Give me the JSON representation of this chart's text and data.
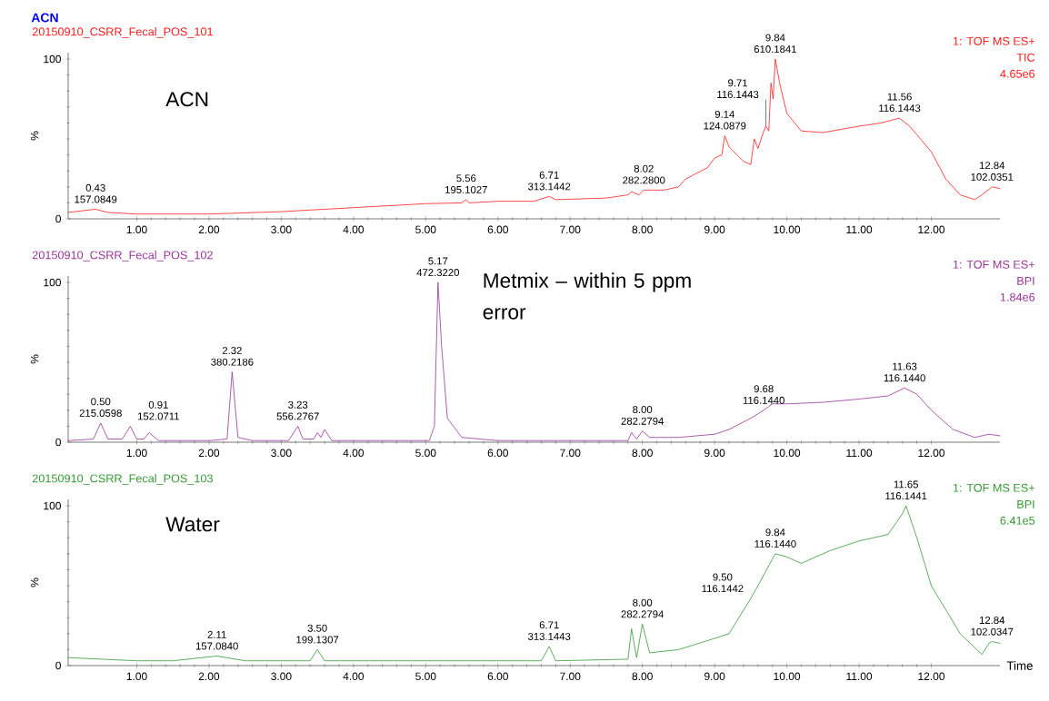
{
  "chart_data": [
    {
      "type": "line",
      "title": "20150910_CSRR_Fecal_POS_101",
      "subtitle": "1: TOF MS ES+",
      "ylabel": "%",
      "color": "#ff1a1a",
      "x": [
        0.05,
        0.43,
        0.6,
        1.0,
        2.0,
        3.0,
        4.0,
        5.0,
        5.5,
        5.56,
        5.6,
        6.0,
        6.5,
        6.71,
        6.8,
        7.5,
        7.8,
        7.85,
        7.95,
        8.02,
        8.3,
        8.5,
        8.6,
        8.9,
        9.0,
        9.1,
        9.14,
        9.2,
        9.4,
        9.5,
        9.55,
        9.6,
        9.68,
        9.71,
        9.75,
        9.78,
        9.81,
        9.84,
        9.9,
        10.0,
        10.2,
        10.5,
        11.0,
        11.3,
        11.56,
        11.7,
        12.0,
        12.2,
        12.4,
        12.6,
        12.7,
        12.84,
        12.95
      ],
      "values": [
        4,
        6,
        4,
        3,
        3,
        4.5,
        7,
        9.5,
        10,
        12,
        10,
        11,
        11,
        14,
        12,
        13,
        15,
        17,
        15,
        18,
        18,
        20,
        25,
        32,
        38,
        40,
        52,
        45,
        36,
        34,
        50,
        44,
        55,
        58,
        55,
        85,
        75,
        100,
        85,
        66,
        55,
        54,
        58,
        60,
        63,
        58,
        42,
        25,
        15,
        12,
        15,
        20,
        19
      ],
      "xlim": [
        0.05,
        12.95
      ],
      "ylim": [
        0,
        104
      ],
      "xticks": [
        {
          "value": 1,
          "label": "1.00"
        },
        {
          "value": 2,
          "label": "2.00"
        },
        {
          "value": 3,
          "label": "3.00"
        },
        {
          "value": 4,
          "label": "4.00"
        },
        {
          "value": 5,
          "label": "5.00"
        },
        {
          "value": 6,
          "label": "6.00"
        },
        {
          "value": 7,
          "label": "7.00"
        },
        {
          "value": 8,
          "label": "8.00"
        },
        {
          "value": 9,
          "label": "9.00"
        },
        {
          "value": 10,
          "label": "10.00"
        },
        {
          "value": 11,
          "label": "11.00"
        },
        {
          "value": 12,
          "label": "12.00"
        }
      ],
      "yticks": [
        0,
        100
      ],
      "annotations": [
        "TIC",
        "4.65e6",
        "ACN",
        "ACN",
        {
          "text": "0.43 157.0849",
          "x": 0.43,
          "y": 6
        },
        {
          "text": "5.56 195.1027",
          "x": 5.56,
          "y": 12
        },
        {
          "text": "6.71 313.1442",
          "x": 6.71,
          "y": 14
        },
        {
          "text": "8.02 282.2800",
          "x": 8.02,
          "y": 18
        },
        {
          "text": "9.14 124.0879",
          "x": 9.14,
          "y": 52
        },
        {
          "text": "9.71 116.1443",
          "x": 9.71,
          "y": 58
        },
        {
          "text": "9.84 610.1841",
          "x": 9.84,
          "y": 100
        },
        {
          "text": "11.56 116.1443",
          "x": 11.56,
          "y": 63
        },
        {
          "text": "12.84 102.0351",
          "x": 12.84,
          "y": 20
        }
      ]
    },
    {
      "type": "line",
      "title": "20150910_CSRR_Fecal_POS_102",
      "subtitle": "1: TOF MS ES+",
      "ylabel": "%",
      "color": "#993399",
      "x": [
        0.05,
        0.4,
        0.5,
        0.6,
        0.8,
        0.91,
        1.0,
        1.1,
        1.17,
        1.3,
        2.0,
        2.25,
        2.32,
        2.4,
        2.6,
        3.1,
        3.23,
        3.3,
        3.45,
        3.5,
        3.55,
        3.6,
        3.7,
        5.05,
        5.12,
        5.17,
        5.22,
        5.3,
        5.5,
        6.0,
        7.0,
        7.8,
        7.85,
        7.92,
        8.0,
        8.1,
        8.5,
        9.0,
        9.2,
        9.5,
        9.68,
        9.8,
        10.0,
        10.5,
        11.0,
        11.4,
        11.63,
        11.8,
        12.0,
        12.3,
        12.6,
        12.8,
        12.95
      ],
      "values": [
        1,
        2,
        12,
        2,
        2,
        10,
        2,
        2,
        6,
        1,
        1,
        2,
        44,
        3,
        1,
        1,
        10,
        2,
        2,
        6,
        3,
        8,
        1,
        1,
        10,
        100,
        60,
        15,
        3,
        1,
        1,
        1,
        6,
        2,
        7,
        3,
        3,
        5,
        8,
        15,
        20,
        24,
        24,
        25,
        27,
        29,
        34,
        30,
        20,
        8,
        3,
        5,
        4
      ],
      "xlim": [
        0.05,
        12.95
      ],
      "ylim": [
        0,
        104
      ],
      "xticks": [
        {
          "value": 1,
          "label": "1.00"
        },
        {
          "value": 2,
          "label": "2.00"
        },
        {
          "value": 3,
          "label": "3.00"
        },
        {
          "value": 4,
          "label": "4.00"
        },
        {
          "value": 5,
          "label": "5.00"
        },
        {
          "value": 6,
          "label": "6.00"
        },
        {
          "value": 7,
          "label": "7.00"
        },
        {
          "value": 8,
          "label": "8.00"
        },
        {
          "value": 9,
          "label": "9.00"
        },
        {
          "value": 10,
          "label": "10.00"
        },
        {
          "value": 11,
          "label": "11.00"
        },
        {
          "value": 12,
          "label": "12.00"
        }
      ],
      "yticks": [
        0,
        100
      ],
      "annotations": [
        "BPI",
        "1.84e6",
        "Metmix – within 5 ppm error",
        {
          "text": "0.50 215.0598",
          "x": 0.5,
          "y": 12
        },
        {
          "text": "0.91 152.0711",
          "x": 0.91,
          "y": 10
        },
        {
          "text": "2.32 380.2186",
          "x": 2.32,
          "y": 44
        },
        {
          "text": "3.23 556.2767",
          "x": 3.23,
          "y": 10
        },
        {
          "text": "5.17 472.3220",
          "x": 5.17,
          "y": 100
        },
        {
          "text": "8.00 282.2794",
          "x": 8.0,
          "y": 7
        },
        {
          "text": "9.68 116.1440",
          "x": 9.68,
          "y": 20
        },
        {
          "text": "11.63 116.1440",
          "x": 11.63,
          "y": 34
        }
      ]
    },
    {
      "type": "line",
      "title": "20150910_CSRR_Fecal_POS_103",
      "subtitle": "1: TOF MS ES+",
      "ylabel": "%",
      "xlabel": "Time",
      "color": "#339933",
      "x": [
        0.05,
        1.0,
        1.5,
        2.11,
        2.5,
        3.4,
        3.5,
        3.6,
        5.0,
        6.6,
        6.71,
        6.8,
        7.8,
        7.85,
        7.92,
        8.0,
        8.1,
        8.5,
        9.0,
        9.2,
        9.5,
        9.6,
        9.84,
        10.0,
        10.2,
        10.6,
        11.0,
        11.4,
        11.6,
        11.65,
        11.8,
        12.0,
        12.4,
        12.7,
        12.8,
        12.84,
        12.95
      ],
      "values": [
        5,
        3,
        3,
        6,
        3,
        3,
        10,
        3,
        3,
        3,
        12,
        3,
        4,
        23,
        5,
        26,
        8,
        10,
        17,
        20,
        42,
        50,
        70,
        68,
        64,
        72,
        78,
        82,
        95,
        100,
        80,
        50,
        20,
        7,
        14,
        15,
        14
      ],
      "xlim": [
        0.05,
        12.95
      ],
      "ylim": [
        0,
        104
      ],
      "xticks": [
        {
          "value": 1,
          "label": "1.00"
        },
        {
          "value": 2,
          "label": "2.00"
        },
        {
          "value": 3,
          "label": "3.00"
        },
        {
          "value": 4,
          "label": "4.00"
        },
        {
          "value": 5,
          "label": "5.00"
        },
        {
          "value": 6,
          "label": "6.00"
        },
        {
          "value": 7,
          "label": "7.00"
        },
        {
          "value": 8,
          "label": "8.00"
        },
        {
          "value": 9,
          "label": "9.00"
        },
        {
          "value": 10,
          "label": "10.00"
        },
        {
          "value": 11,
          "label": "11.00"
        },
        {
          "value": 12,
          "label": "12.00"
        }
      ],
      "yticks": [
        0,
        100
      ],
      "annotations": [
        "BPI",
        "6.41e5",
        "Water",
        {
          "text": "2.11 157.0840",
          "x": 2.11,
          "y": 6
        },
        {
          "text": "3.50 199.1307",
          "x": 3.5,
          "y": 10
        },
        {
          "text": "6.71 313.1443",
          "x": 6.71,
          "y": 12
        },
        {
          "text": "8.00 282.2794",
          "x": 8.0,
          "y": 26
        },
        {
          "text": "9.50 116.1442",
          "x": 9.5,
          "y": 42
        },
        {
          "text": "9.84 116.1440",
          "x": 9.84,
          "y": 70
        },
        {
          "text": "11.65 116.1441",
          "x": 11.65,
          "y": 100
        },
        {
          "text": "12.84 102.0347",
          "x": 12.84,
          "y": 15
        }
      ]
    }
  ]
}
